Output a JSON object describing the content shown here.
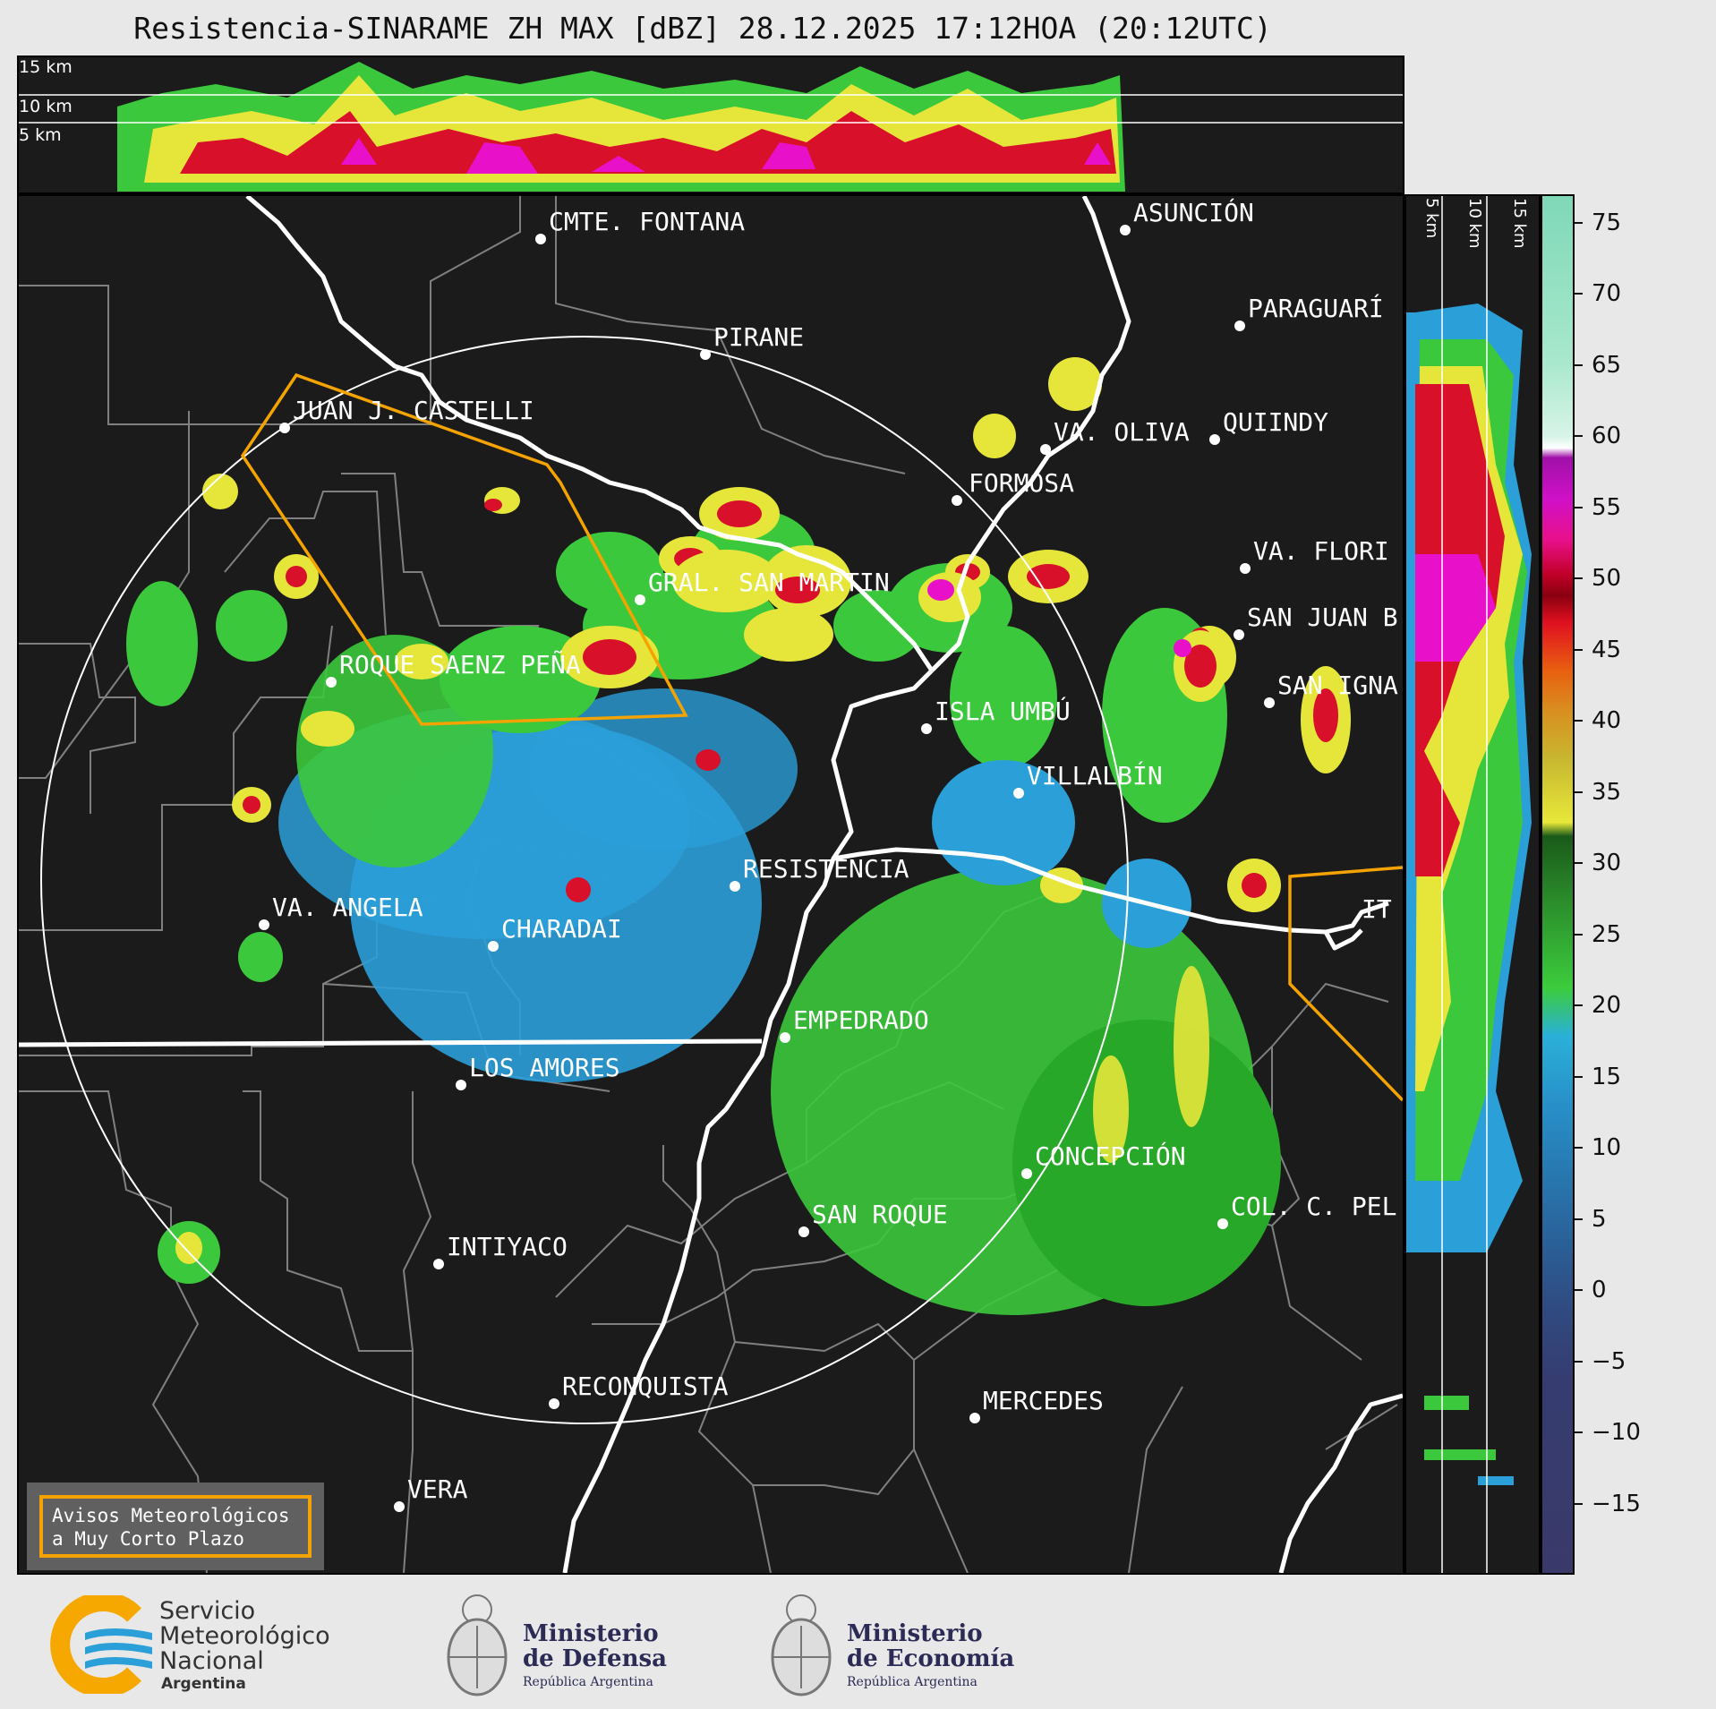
{
  "title": "Resistencia-SINARAME ZH MAX [dBZ] 28.12.2025 17:12HOA (20:12UTC)",
  "top_panel": {
    "height_labels": [
      "15 km",
      "10 km",
      "5 km"
    ]
  },
  "side_panel": {
    "height_labels": [
      "5 km",
      "10 km",
      "15 km"
    ]
  },
  "colorbar": {
    "unit": "dBZ",
    "ticks": [
      "75",
      "70",
      "65",
      "60",
      "55",
      "50",
      "45",
      "40",
      "35",
      "30",
      "25",
      "20",
      "15",
      "10",
      "5",
      "0",
      "−5",
      "−10",
      "−15"
    ],
    "range": [
      -20,
      77
    ]
  },
  "cities": [
    {
      "name": "CMTE. FONTANA"
    },
    {
      "name": "ASUNCIÓN"
    },
    {
      "name": "PARAGUARÍ"
    },
    {
      "name": "PIRANE"
    },
    {
      "name": "JUAN J. CASTELLI"
    },
    {
      "name": "VA. OLIVA"
    },
    {
      "name": "QUIINDY"
    },
    {
      "name": "FORMOSA"
    },
    {
      "name": "VA. FLORI"
    },
    {
      "name": "GRAL. SAN MARTIN"
    },
    {
      "name": "SAN JUAN B"
    },
    {
      "name": "ROQUE SAENZ PEÑA"
    },
    {
      "name": "SAN IGNA"
    },
    {
      "name": "ISLA UMBÚ"
    },
    {
      "name": "VILLALBÍN"
    },
    {
      "name": "RESISTENCIA"
    },
    {
      "name": "VA. ANGELA"
    },
    {
      "name": "CHARADAI"
    },
    {
      "name": "IT"
    },
    {
      "name": "EMPEDRADO"
    },
    {
      "name": "LOS AMORES"
    },
    {
      "name": "CONCEPCIÓN"
    },
    {
      "name": "SAN ROQUE"
    },
    {
      "name": "COL. C. PEL"
    },
    {
      "name": "INTIYACO"
    },
    {
      "name": "RECONQUISTA"
    },
    {
      "name": "MERCEDES"
    },
    {
      "name": "VERA"
    }
  ],
  "warning_box": {
    "line1": "Avisos Meteorológicos",
    "line2": "a Muy Corto Plazo"
  },
  "footer": {
    "smn": {
      "line1": "Servicio",
      "line2": "Meteorológico",
      "line3": "Nacional",
      "line4": "Argentina"
    },
    "defensa": {
      "line1": "Ministerio",
      "line2": "de Defensa",
      "line3": "República Argentina"
    },
    "economia": {
      "line1": "Ministerio",
      "line2": "de Economía",
      "line3": "República Argentina"
    }
  },
  "colors": {
    "background": "#1b1b1b",
    "range_ring": "#ffffff",
    "borders_major": "#ffffff",
    "borders_minor": "#808080",
    "warning_polygon": "#f5a300",
    "smn_yellow": "#f6a800",
    "smn_blue": "#2b9fd8"
  }
}
